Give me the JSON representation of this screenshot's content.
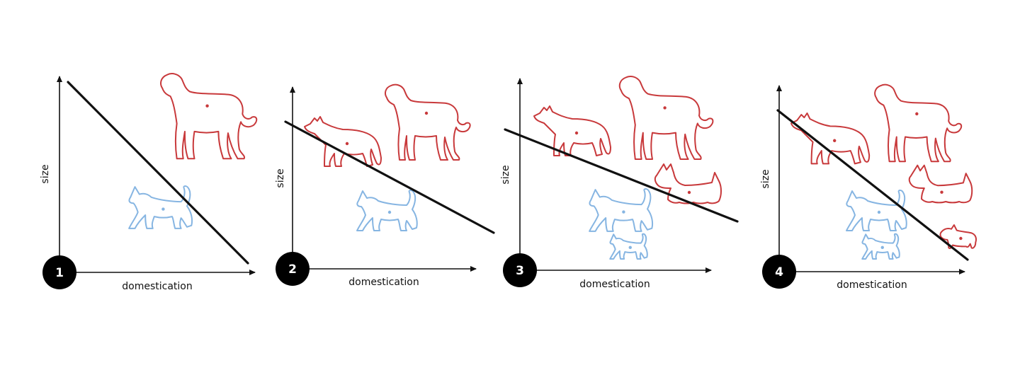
{
  "colors": {
    "dog": "#c8393b",
    "cat": "#86b5e2",
    "line": "#111111",
    "badge": "#000000",
    "badge_text": "#ffffff"
  },
  "panels": [
    {
      "number": "1",
      "xlabel": "domestication",
      "ylabel": "size",
      "animals": [
        {
          "kind": "dog",
          "icon": "saluki-dog-icon"
        },
        {
          "kind": "cat",
          "icon": "cat-icon"
        }
      ]
    },
    {
      "number": "2",
      "xlabel": "domestication",
      "ylabel": "size",
      "animals": [
        {
          "kind": "dog",
          "icon": "wolf-icon"
        },
        {
          "kind": "dog",
          "icon": "saluki-dog-icon"
        },
        {
          "kind": "cat",
          "icon": "cat-icon"
        }
      ]
    },
    {
      "number": "3",
      "xlabel": "domestication",
      "ylabel": "size",
      "animals": [
        {
          "kind": "dog",
          "icon": "wolf-icon"
        },
        {
          "kind": "dog",
          "icon": "saluki-dog-icon"
        },
        {
          "kind": "dog",
          "icon": "terrier-dog-icon"
        },
        {
          "kind": "cat",
          "icon": "cat-icon"
        },
        {
          "kind": "cat",
          "icon": "small-cat-icon"
        }
      ]
    },
    {
      "number": "4",
      "xlabel": "domestication",
      "ylabel": "size",
      "animals": [
        {
          "kind": "dog",
          "icon": "wolf-icon"
        },
        {
          "kind": "dog",
          "icon": "saluki-dog-icon"
        },
        {
          "kind": "dog",
          "icon": "terrier-dog-icon"
        },
        {
          "kind": "dog",
          "icon": "small-dog-icon"
        },
        {
          "kind": "cat",
          "icon": "cat-icon"
        },
        {
          "kind": "cat",
          "icon": "small-cat-icon"
        }
      ]
    }
  ]
}
